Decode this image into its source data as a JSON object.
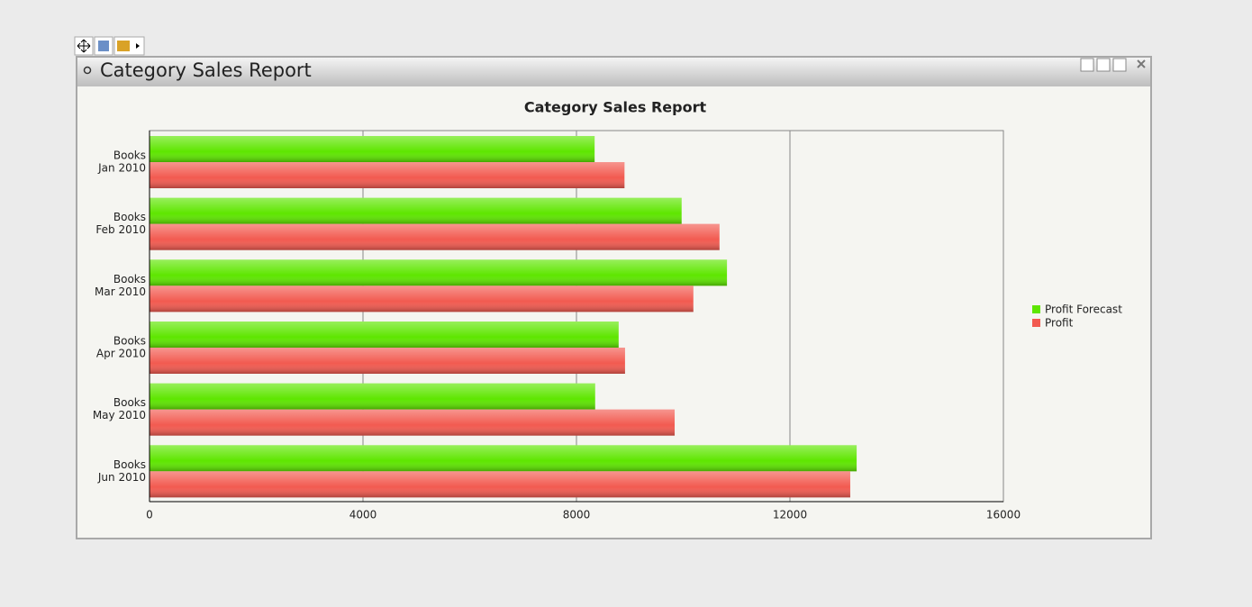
{
  "window": {
    "title": "Category Sales Report"
  },
  "chart_data": {
    "type": "bar",
    "orientation": "horizontal",
    "title": "Category Sales Report",
    "categories": [
      [
        "Books",
        "Jan 2010"
      ],
      [
        "Books",
        "Feb 2010"
      ],
      [
        "Books",
        "Mar 2010"
      ],
      [
        "Books",
        "Apr 2010"
      ],
      [
        "Books",
        "May 2010"
      ],
      [
        "Books",
        "Jun 2010"
      ]
    ],
    "series": [
      {
        "name": "Profit Forecast",
        "color": "#5ee600",
        "values": [
          8340,
          9970,
          10820,
          8790,
          8350,
          13250
        ]
      },
      {
        "name": "Profit",
        "color": "#f25a50",
        "values": [
          8900,
          10680,
          10190,
          8910,
          9840,
          13130
        ]
      }
    ],
    "xlim": [
      0,
      16000
    ],
    "xticks": [
      0,
      4000,
      8000,
      12000,
      16000
    ],
    "grid": true,
    "legend": "right"
  }
}
